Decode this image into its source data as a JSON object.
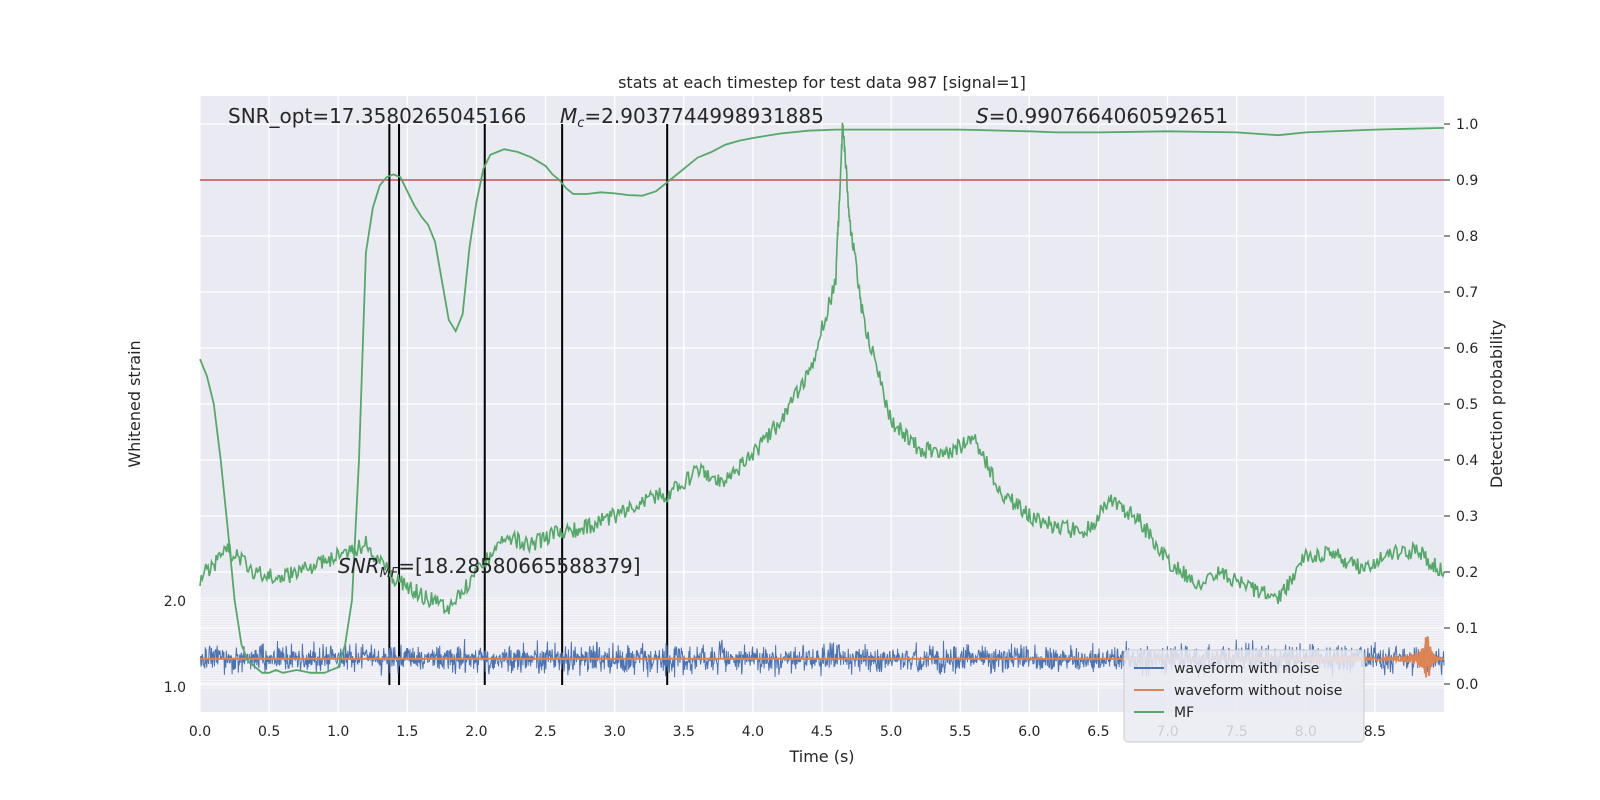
{
  "chart_data": {
    "type": "line",
    "title": "stats at each timestep for test data 987 [signal=1]",
    "xlabel": "Time (s)",
    "ylabel_left": "Whitened strain",
    "ylabel_right": "Detection probability",
    "xlim": [
      0.0,
      9.0
    ],
    "ylim_right": [
      -0.05,
      1.05
    ],
    "x_ticks": [
      0.0,
      0.5,
      1.0,
      1.5,
      2.0,
      2.5,
      3.0,
      3.5,
      4.0,
      4.5,
      5.0,
      5.5,
      6.0,
      6.5,
      7.0,
      7.5,
      8.0,
      8.5
    ],
    "x_tick_labels": [
      "0.0",
      "0.5",
      "1.0",
      "1.5",
      "2.0",
      "2.5",
      "3.0",
      "3.5",
      "4.0",
      "4.5",
      "5.0",
      "5.5",
      "6.0",
      "6.5",
      "7.0",
      "7.5",
      "8.0",
      "8.5"
    ],
    "y_right_ticks": [
      0.0,
      0.1,
      0.2,
      0.3,
      0.4,
      0.5,
      0.6,
      0.7,
      0.8,
      0.9,
      1.0
    ],
    "y_right_tick_labels": [
      "0.0",
      "0.1",
      "0.2",
      "0.3",
      "0.4",
      "0.5",
      "0.6",
      "0.7",
      "0.8",
      "0.9",
      "1.0"
    ],
    "grid": true,
    "legend_placement": "lower-right",
    "threshold": 0.9,
    "vertical_lines_x": [
      1.37,
      1.44,
      2.06,
      2.62,
      3.38
    ],
    "annotations": {
      "snr_opt": "SNR_opt=17.3580265045166",
      "mc": "=2.9037744998931885",
      "mc_symbol": "M",
      "mc_sub": "c",
      "s": "=0.9907664060592651",
      "s_symbol": "S",
      "snr_mf": "SNR",
      "snr_mf_sub": "MF",
      "snr_mf_value": "=[18.28580665588379]"
    },
    "left_axis_visible_labels": [
      "2.0",
      "1.0"
    ],
    "series": [
      {
        "name": "waveform with noise",
        "color": "#4c72b0",
        "amplitude": 0.025,
        "baseline": 0.045
      },
      {
        "name": "waveform without noise",
        "color": "#dd8452",
        "baseline": 0.045,
        "merger_x": 8.88,
        "merger_amplitude": 0.05
      },
      {
        "name": "MF",
        "color": "#55a868",
        "x": [
          0.0,
          0.05,
          0.1,
          0.15,
          0.2,
          0.25,
          0.3,
          0.35,
          0.4,
          0.45,
          0.5,
          0.55,
          0.6,
          0.7,
          0.8,
          0.9,
          1.0,
          1.05,
          1.1,
          1.15,
          1.2,
          1.25,
          1.3,
          1.35,
          1.4,
          1.45,
          1.5,
          1.55,
          1.6,
          1.65,
          1.7,
          1.75,
          1.8,
          1.85,
          1.9,
          1.95,
          2.0,
          2.05,
          2.1,
          2.15,
          2.2,
          2.3,
          2.4,
          2.5,
          2.55,
          2.6,
          2.65,
          2.7,
          2.8,
          2.9,
          3.0,
          3.1,
          3.2,
          3.3,
          3.4,
          3.5,
          3.6,
          3.7,
          3.8,
          3.9,
          4.0,
          4.2,
          4.4,
          4.6,
          4.8,
          5.0,
          5.5,
          6.0,
          6.2,
          6.5,
          7.0,
          7.5,
          7.8,
          8.0,
          8.5,
          9.0
        ],
        "values": [
          0.58,
          0.55,
          0.5,
          0.4,
          0.28,
          0.15,
          0.07,
          0.04,
          0.03,
          0.02,
          0.02,
          0.025,
          0.02,
          0.025,
          0.02,
          0.02,
          0.03,
          0.07,
          0.15,
          0.4,
          0.77,
          0.85,
          0.89,
          0.905,
          0.91,
          0.905,
          0.88,
          0.855,
          0.835,
          0.82,
          0.79,
          0.72,
          0.65,
          0.63,
          0.66,
          0.78,
          0.86,
          0.92,
          0.945,
          0.95,
          0.955,
          0.95,
          0.94,
          0.925,
          0.91,
          0.9,
          0.885,
          0.875,
          0.875,
          0.878,
          0.876,
          0.873,
          0.872,
          0.88,
          0.9,
          0.92,
          0.94,
          0.95,
          0.963,
          0.97,
          0.975,
          0.983,
          0.988,
          0.99,
          0.99,
          0.99,
          0.99,
          0.987,
          0.985,
          0.985,
          0.987,
          0.985,
          0.98,
          0.985,
          0.99,
          0.993
        ]
      },
      {
        "name": "",
        "color": "#55a868",
        "x": [
          0.0,
          0.2,
          0.4,
          0.6,
          0.8,
          1.0,
          1.2,
          1.4,
          1.6,
          1.8,
          2.0,
          2.2,
          2.4,
          2.6,
          2.8,
          3.0,
          3.2,
          3.4,
          3.6,
          3.8,
          4.0,
          4.2,
          4.4,
          4.6,
          4.65,
          4.7,
          4.8,
          5.0,
          5.2,
          5.4,
          5.6,
          5.8,
          6.0,
          6.2,
          6.4,
          6.6,
          6.8,
          7.0,
          7.2,
          7.4,
          7.6,
          7.8,
          8.0,
          8.2,
          8.4,
          8.6,
          8.8,
          9.0
        ],
        "values": [
          0.19,
          0.24,
          0.2,
          0.19,
          0.21,
          0.23,
          0.25,
          0.19,
          0.16,
          0.13,
          0.2,
          0.26,
          0.25,
          0.27,
          0.28,
          0.3,
          0.33,
          0.34,
          0.38,
          0.36,
          0.41,
          0.47,
          0.55,
          0.72,
          1.0,
          0.83,
          0.65,
          0.47,
          0.42,
          0.41,
          0.44,
          0.34,
          0.3,
          0.28,
          0.27,
          0.33,
          0.29,
          0.22,
          0.18,
          0.2,
          0.17,
          0.15,
          0.23,
          0.23,
          0.21,
          0.23,
          0.24,
          0.2
        ]
      }
    ]
  }
}
